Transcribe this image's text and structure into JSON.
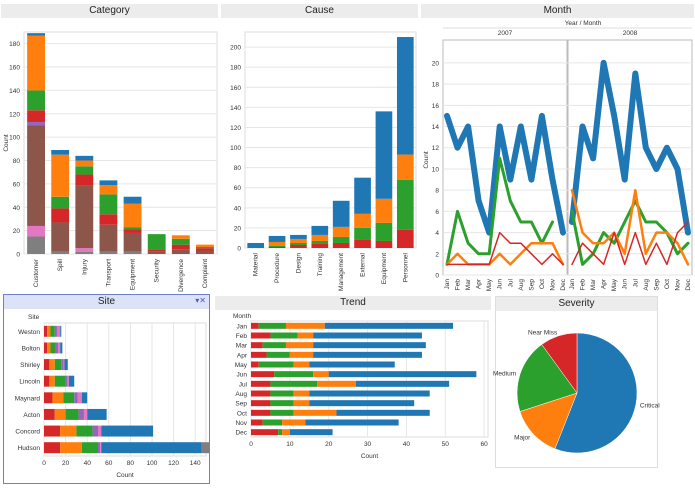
{
  "colors": {
    "blue": "#1f77b4",
    "orange": "#ff7f0e",
    "green": "#2ca02c",
    "red": "#d62728",
    "purple": "#9467bd",
    "brown": "#8c564b",
    "pink": "#e377c2",
    "gray": "#7f7f7f",
    "panel_title_bg": "#ececec",
    "selected_border": "#6f7fd0"
  },
  "panels": {
    "category": {
      "title": "Category"
    },
    "cause": {
      "title": "Cause"
    },
    "month": {
      "title": "Month"
    },
    "site": {
      "title": "Site"
    },
    "trend": {
      "title": "Trend"
    },
    "severity": {
      "title": "Severity"
    }
  },
  "chart_data": [
    {
      "id": "category",
      "type": "bar",
      "orientation": "vertical",
      "stacked": true,
      "title": "Category",
      "xlabel": "",
      "ylabel": "Count",
      "ylim": [
        0,
        190
      ],
      "yticks": [
        0,
        20,
        40,
        60,
        80,
        100,
        120,
        140,
        160,
        180
      ],
      "categories": [
        "Customer",
        "Spill",
        "Injury",
        "Transport",
        "Equipment",
        "Security",
        "Divergence",
        "Complaint"
      ],
      "series": [
        {
          "color": "#7f7f7f",
          "values": [
            15,
            2,
            2,
            2,
            2,
            0,
            0,
            0
          ]
        },
        {
          "color": "#e377c2",
          "values": [
            9,
            0,
            3,
            0,
            0,
            0,
            0,
            0
          ]
        },
        {
          "color": "#8c564b",
          "values": [
            86,
            25,
            54,
            23,
            16,
            2,
            4,
            3
          ]
        },
        {
          "color": "#9467bd",
          "values": [
            3,
            0,
            0,
            0,
            0,
            0,
            0,
            0
          ]
        },
        {
          "color": "#d62728",
          "values": [
            10,
            12,
            9,
            9,
            3,
            2,
            4,
            2
          ]
        },
        {
          "color": "#2ca02c",
          "values": [
            17,
            10,
            7,
            17,
            2,
            13,
            5,
            1
          ]
        },
        {
          "color": "#ff7f0e",
          "values": [
            47,
            36,
            5,
            8,
            20,
            0,
            3,
            2
          ]
        },
        {
          "color": "#1f77b4",
          "values": [
            2,
            4,
            4,
            4,
            6,
            0,
            0,
            0
          ]
        }
      ]
    },
    {
      "id": "cause",
      "type": "bar",
      "orientation": "vertical",
      "stacked": true,
      "title": "Cause",
      "xlabel": "",
      "ylabel": "",
      "ylim": [
        0,
        215
      ],
      "yticks": [
        0,
        20,
        40,
        60,
        80,
        100,
        120,
        140,
        160,
        180,
        200
      ],
      "categories": [
        "Material",
        "Procedure",
        "Design",
        "Training",
        "Management",
        "External",
        "Equipment",
        "Personnel"
      ],
      "series": [
        {
          "color": "#d62728",
          "values": [
            0,
            1,
            3,
            4,
            5,
            8,
            7,
            18
          ]
        },
        {
          "color": "#2ca02c",
          "values": [
            0,
            1,
            2,
            3,
            6,
            12,
            18,
            50
          ]
        },
        {
          "color": "#ff7f0e",
          "values": [
            0,
            4,
            4,
            6,
            10,
            14,
            24,
            25
          ]
        },
        {
          "color": "#1f77b4",
          "values": [
            5,
            6,
            4,
            9,
            26,
            36,
            87,
            117
          ]
        }
      ]
    },
    {
      "id": "month",
      "type": "line",
      "title": "Month",
      "header_label": "Year / Month",
      "ylabel": "Count",
      "ylim": [
        0,
        21.5
      ],
      "yticks": [
        0,
        2,
        4,
        6,
        8,
        10,
        12,
        14,
        16,
        18,
        20
      ],
      "years": [
        "2007",
        "2008"
      ],
      "months": [
        "Jan",
        "Feb",
        "Mar",
        "Apr",
        "May",
        "Jun",
        "Jul",
        "Aug",
        "Sep",
        "Oct",
        "Nov",
        "Dec"
      ],
      "series": [
        {
          "color": "#1f77b4",
          "width": 6,
          "values": [
            15,
            12,
            14,
            7,
            4,
            14,
            9,
            14,
            9,
            15,
            9,
            4,
            5,
            14,
            11,
            20,
            15,
            9,
            19,
            12,
            10,
            12,
            10,
            4
          ]
        },
        {
          "color": "#2ca02c",
          "width": 3,
          "values": [
            1,
            6,
            3,
            2,
            2,
            11,
            7,
            5,
            5,
            3,
            5,
            null,
            6,
            1,
            2,
            4,
            3,
            5,
            7,
            5,
            5,
            4,
            2,
            3
          ]
        },
        {
          "color": "#ff7f0e",
          "width": 2.5,
          "values": [
            1,
            2,
            1,
            1,
            1,
            2,
            1,
            2,
            3,
            3,
            3,
            1,
            8,
            4,
            3,
            3,
            4,
            2,
            8,
            2,
            4,
            4,
            3,
            1
          ]
        },
        {
          "color": "#d62728",
          "width": 1.5,
          "values": [
            1,
            1,
            1,
            1,
            1,
            4,
            3,
            3,
            2,
            1,
            2,
            1,
            1,
            3,
            2,
            1,
            4,
            1,
            4,
            1,
            3,
            1,
            4,
            5
          ]
        }
      ]
    },
    {
      "id": "site",
      "type": "bar",
      "orientation": "horizontal",
      "stacked": true,
      "title": "Site",
      "row_header": "Site",
      "xlabel": "Count",
      "xlim": [
        0,
        150
      ],
      "xticks": [
        0,
        20,
        40,
        60,
        80,
        100,
        120,
        140
      ],
      "categories": [
        "Weston",
        "Bolton",
        "Shirley",
        "Lincoln",
        "Maynard",
        "Acton",
        "Concord",
        "Hudson"
      ],
      "series": [
        {
          "color": "#d62728",
          "values": [
            3,
            3,
            5,
            5,
            8,
            10,
            15,
            15
          ]
        },
        {
          "color": "#ff7f0e",
          "values": [
            3,
            3,
            5,
            5,
            10,
            10,
            15,
            20
          ]
        },
        {
          "color": "#2ca02c",
          "values": [
            4,
            5,
            6,
            10,
            10,
            12,
            15,
            15
          ]
        },
        {
          "color": "#9467bd",
          "values": [
            2,
            2,
            2,
            2,
            3,
            5,
            5,
            2
          ]
        },
        {
          "color": "#e377c2",
          "values": [
            3,
            2,
            1,
            1,
            4,
            3,
            3,
            1
          ]
        },
        {
          "color": "#1f77b4",
          "values": [
            1,
            2,
            3,
            5,
            5,
            18,
            48,
            93
          ]
        },
        {
          "color": "#7f7f7f",
          "values": [
            0,
            0,
            0,
            0,
            0,
            0,
            0,
            7
          ]
        }
      ]
    },
    {
      "id": "trend",
      "type": "bar",
      "orientation": "horizontal",
      "stacked": true,
      "title": "Trend",
      "row_header": "Month",
      "xlabel": "Count",
      "xlim": [
        0,
        61
      ],
      "xticks": [
        0,
        10,
        20,
        30,
        40,
        50,
        60
      ],
      "categories": [
        "Jan",
        "Feb",
        "Mar",
        "Apr",
        "May",
        "Jun",
        "Jul",
        "Aug",
        "Sep",
        "Oct",
        "Nov",
        "Dec"
      ],
      "series": [
        {
          "color": "#d62728",
          "values": [
            2,
            5,
            3,
            4,
            2,
            6,
            5,
            5,
            5,
            5,
            3,
            7
          ]
        },
        {
          "color": "#2ca02c",
          "values": [
            7,
            7,
            6,
            6,
            9,
            10,
            12,
            6,
            6,
            6,
            5,
            1
          ]
        },
        {
          "color": "#ff7f0e",
          "values": [
            10,
            4,
            7,
            6,
            4,
            4,
            10,
            4,
            4,
            11,
            6,
            2
          ]
        },
        {
          "color": "#1f77b4",
          "values": [
            33,
            28,
            29,
            28,
            22,
            38,
            24,
            31,
            27,
            24,
            24,
            11
          ]
        }
      ]
    },
    {
      "id": "severity",
      "type": "pie",
      "title": "Severity",
      "slices": [
        {
          "label": "Critical",
          "value": 56,
          "color": "#1f77b4"
        },
        {
          "label": "Major",
          "value": 14,
          "color": "#ff7f0e"
        },
        {
          "label": "Medium",
          "value": 20,
          "color": "#2ca02c"
        },
        {
          "label": "Near Miss",
          "value": 10,
          "color": "#d62728"
        }
      ]
    }
  ]
}
